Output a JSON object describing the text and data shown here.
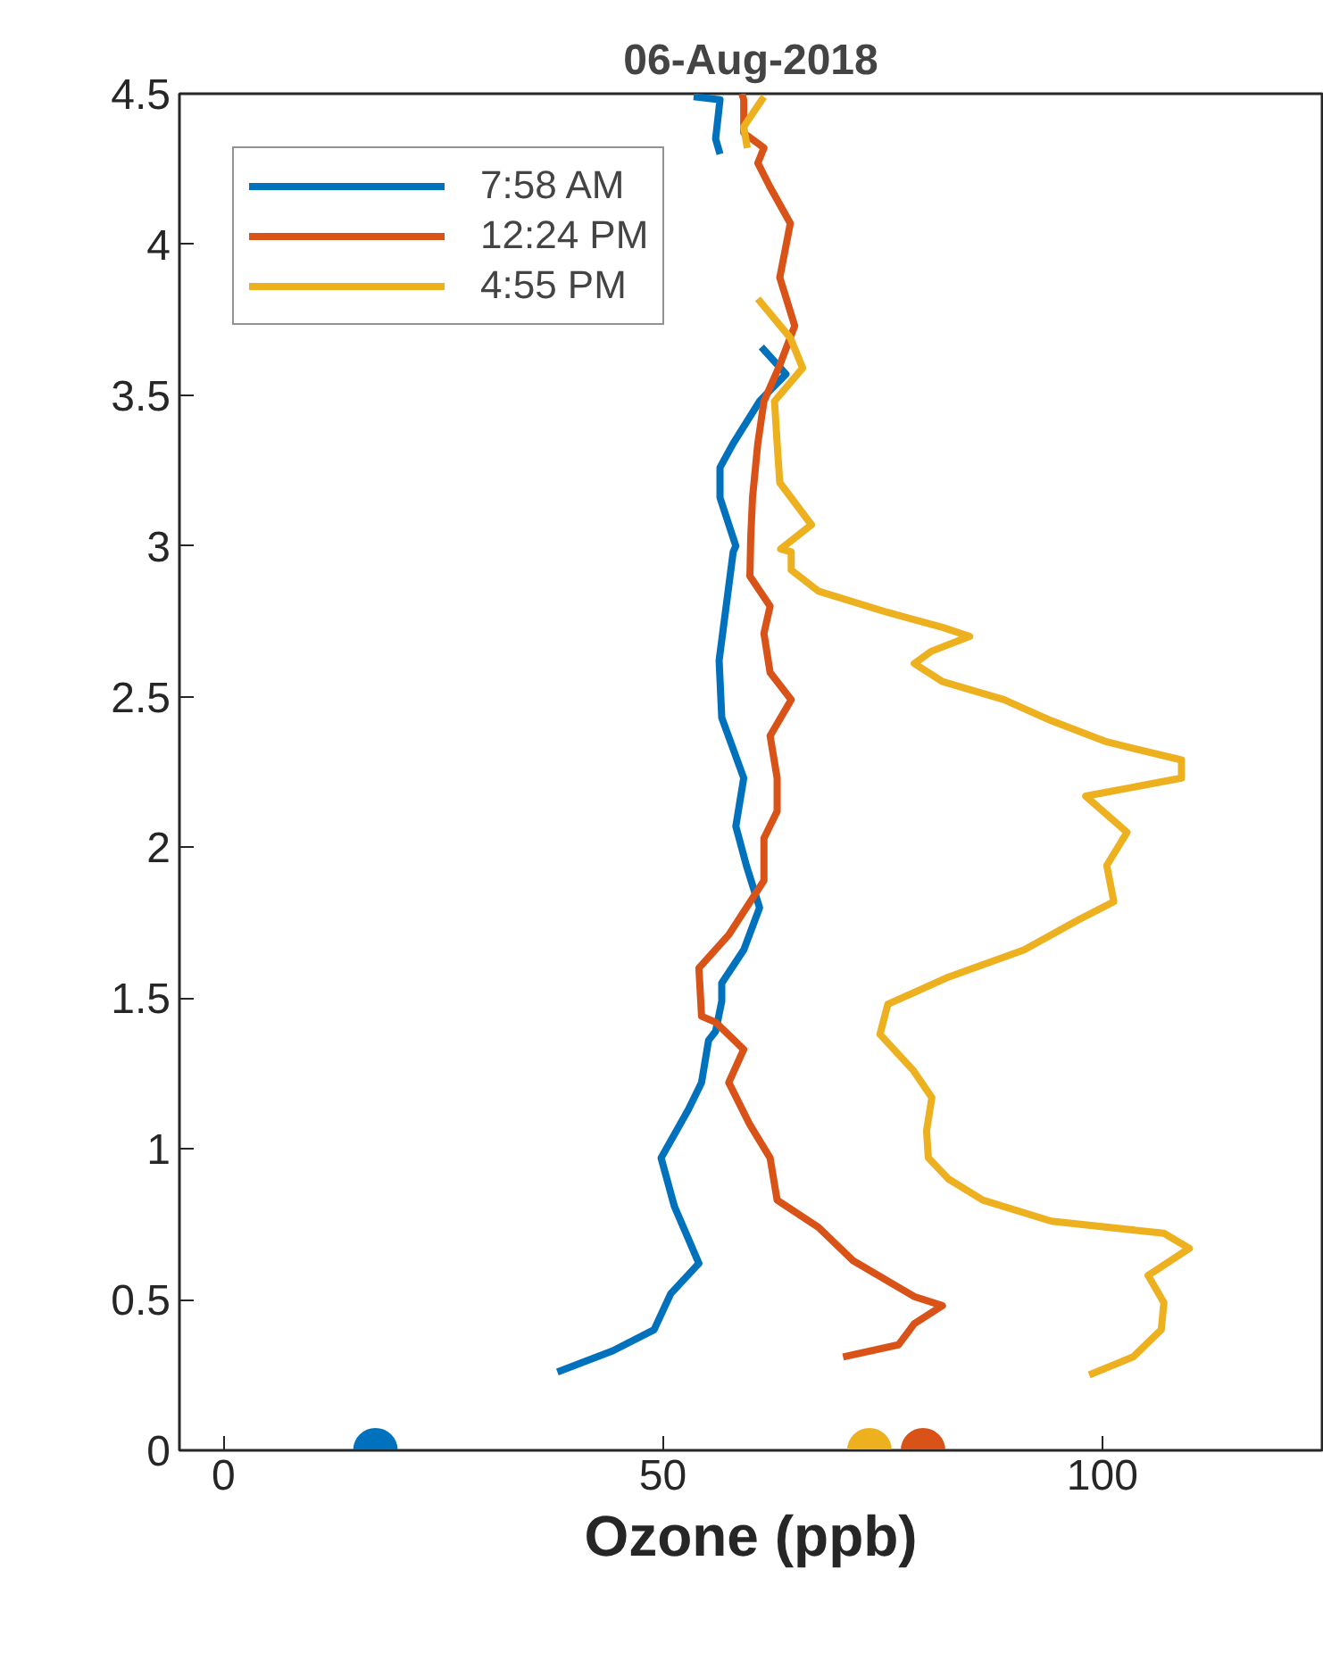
{
  "chart_data": {
    "type": "line",
    "title": "06-Aug-2018",
    "xlabel": "Ozone (ppb)",
    "xlim": [
      -5,
      125
    ],
    "xticks": [
      0,
      50,
      100
    ],
    "ylim": [
      0,
      4.5
    ],
    "yticks": [
      0,
      0.5,
      1,
      1.5,
      2,
      2.5,
      3,
      3.5,
      4,
      4.5
    ],
    "grid": false,
    "legend": "top left",
    "line_style": "solid",
    "series": [
      {
        "name": "7:58 AM",
        "color": "#0072bd",
        "x": [
          38,
          44.3,
          49,
          50.9,
          54.1,
          51.3,
          49.8,
          52.9,
          54.4,
          55.2,
          56,
          56.7,
          56.7,
          59.2,
          61,
          59.5,
          58.3,
          59.2,
          56.7,
          56.4,
          58,
          58.3,
          56.5,
          56.5,
          58,
          61,
          64,
          61.2,
          null,
          56.5,
          56,
          56.5,
          53.5
        ],
        "values": [
          0.26,
          0.33,
          0.4,
          0.52,
          0.62,
          0.81,
          0.97,
          1.13,
          1.22,
          1.36,
          1.39,
          1.49,
          1.55,
          1.66,
          1.8,
          1.94,
          2.07,
          2.23,
          2.43,
          2.62,
          2.98,
          3.0,
          3.16,
          3.26,
          3.34,
          3.48,
          3.57,
          3.66,
          null,
          4.3,
          4.35,
          4.48,
          4.49
        ]
      },
      {
        "name": "12:24 PM",
        "color": "#d95319",
        "x": [
          70.5,
          76.8,
          78.6,
          81.8,
          78.6,
          71.6,
          67.7,
          63,
          62.2,
          59.9,
          57.5,
          59.2,
          56,
          54.4,
          54.1,
          57.5,
          61.5,
          61.5,
          63,
          63,
          62.2,
          64.6,
          62.2,
          61.5,
          62.2,
          59.9,
          60,
          60.2,
          60.8,
          61.5,
          63.3,
          65,
          63.3,
          64.5,
          62.2,
          60.8,
          61.5,
          59.2,
          59.2,
          59
        ],
        "values": [
          0.31,
          0.35,
          0.42,
          0.48,
          0.51,
          0.63,
          0.74,
          0.83,
          0.97,
          1.08,
          1.22,
          1.33,
          1.42,
          1.44,
          1.6,
          1.71,
          1.89,
          2.03,
          2.12,
          2.23,
          2.37,
          2.49,
          2.58,
          2.71,
          2.8,
          2.9,
          3.03,
          3.16,
          3.34,
          3.48,
          3.6,
          3.73,
          3.89,
          4.07,
          4.19,
          4.27,
          4.32,
          4.37,
          4.48,
          4.5
        ]
      },
      {
        "name": "4:55 PM",
        "color": "#edb120",
        "x": [
          98.5,
          103.5,
          106.7,
          107,
          105.2,
          109.9,
          107,
          94.2,
          86.4,
          82.5,
          80.2,
          80,
          80.6,
          78.5,
          74.7,
          75.6,
          82.5,
          91.1,
          97.3,
          101.3,
          100.5,
          102.8,
          98.1,
          109,
          109,
          100.5,
          94.2,
          88.8,
          81.8,
          78.6,
          80.5,
          84.9,
          81.8,
          75.5,
          67.7,
          64.6,
          64.6,
          63.4,
          66.9,
          63.3,
          63,
          62.7,
          65.9,
          64.5,
          60.8,
          null,
          59.6,
          59.2,
          60.8,
          61.5
        ],
        "values": [
          0.25,
          0.31,
          0.4,
          0.49,
          0.58,
          0.67,
          0.72,
          0.76,
          0.83,
          0.9,
          0.97,
          1.06,
          1.17,
          1.26,
          1.38,
          1.48,
          1.57,
          1.66,
          1.76,
          1.82,
          1.94,
          2.05,
          2.17,
          2.23,
          2.29,
          2.35,
          2.42,
          2.49,
          2.55,
          2.61,
          2.65,
          2.7,
          2.73,
          2.78,
          2.85,
          2.92,
          2.98,
          2.99,
          3.07,
          3.21,
          3.34,
          3.48,
          3.59,
          3.69,
          3.82,
          null,
          4.32,
          4.39,
          4.46,
          4.49
        ]
      },
      {
        "type": "scatter",
        "marker": "circle",
        "color": "#0072bd",
        "x": [
          17.3
        ],
        "values": [
          0
        ]
      },
      {
        "type": "scatter",
        "marker": "circle",
        "color": "#edb120",
        "x": [
          73.5
        ],
        "values": [
          0
        ]
      },
      {
        "type": "scatter",
        "marker": "circle",
        "color": "#d95319",
        "x": [
          79.6
        ],
        "values": [
          0
        ]
      }
    ]
  }
}
